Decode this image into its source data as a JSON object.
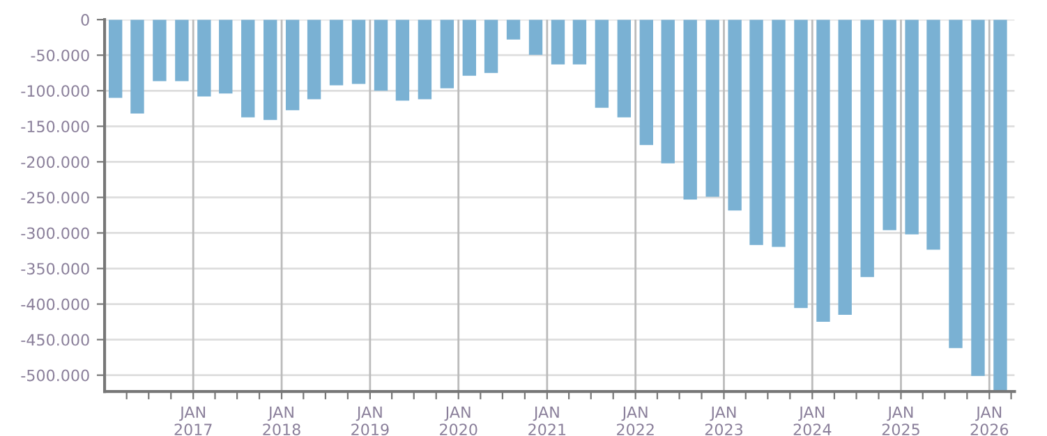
{
  "chart_data": {
    "type": "bar",
    "color": "#7ab1d3",
    "grid": true,
    "x": [
      "2016-02-15",
      "2016-05-15",
      "2016-08-15",
      "2016-11-15",
      "2017-02-15",
      "2017-05-15",
      "2017-08-15",
      "2017-11-15",
      "2018-02-15",
      "2018-05-15",
      "2018-08-15",
      "2018-11-15",
      "2019-02-15",
      "2019-05-15",
      "2019-08-15",
      "2019-11-15",
      "2020-02-15",
      "2020-05-15",
      "2020-08-15",
      "2020-11-15",
      "2021-02-15",
      "2021-05-15",
      "2021-08-15",
      "2021-11-15",
      "2022-02-15",
      "2022-05-15",
      "2022-08-15",
      "2022-11-15",
      "2023-02-15",
      "2023-05-15",
      "2023-08-15",
      "2023-11-15",
      "2024-02-15",
      "2024-05-15",
      "2024-08-15",
      "2024-11-15",
      "2025-02-15",
      "2025-05-15",
      "2025-08-15",
      "2025-11-15",
      "2026-02-15"
    ],
    "values": [
      -110000,
      -132000,
      -86500,
      -86500,
      -108000,
      -104000,
      -137500,
      -141000,
      -127500,
      -112000,
      -92500,
      -90500,
      -100000,
      -114000,
      -112000,
      -96500,
      -79000,
      -75000,
      -28000,
      -49500,
      -63000,
      -63000,
      -124000,
      -137500,
      -176500,
      -202000,
      -253000,
      -249000,
      -268500,
      -317000,
      -319500,
      -405500,
      -425000,
      -415000,
      -362000,
      -296000,
      -302000,
      -323500,
      -462000,
      -501000,
      -523000
    ],
    "xlim": [
      "2016-01-01",
      "2026-04-15"
    ],
    "ylim": [
      -523000,
      0
    ],
    "yticks": [
      0,
      {
        "value": -50000,
        "label": "-50.000"
      },
      {
        "value": -100000,
        "label": "-100.000"
      },
      {
        "value": -150000,
        "label": "-150.000"
      },
      {
        "value": -200000,
        "label": "-200.000"
      },
      {
        "value": -250000,
        "label": "-250.000"
      },
      {
        "value": -300000,
        "label": "-300.000"
      },
      {
        "value": -350000,
        "label": "-350.000"
      },
      {
        "value": -400000,
        "label": "-400.000"
      },
      {
        "value": -450000,
        "label": "-450.000"
      },
      {
        "value": -500000,
        "label": "-500.000"
      }
    ],
    "xticks": [
      {
        "value": "2016-04-01",
        "label": null
      },
      {
        "value": "2016-07-01",
        "label": null
      },
      {
        "value": "2016-10-01",
        "label": null
      },
      {
        "value": "2017-01-01",
        "label": "JAN\n2017"
      },
      {
        "value": "2017-04-01",
        "label": null
      },
      {
        "value": "2017-07-01",
        "label": null
      },
      {
        "value": "2017-10-01",
        "label": null
      },
      {
        "value": "2018-01-01",
        "label": "JAN\n2018"
      },
      {
        "value": "2018-04-01",
        "label": null
      },
      {
        "value": "2018-07-01",
        "label": null
      },
      {
        "value": "2018-10-01",
        "label": null
      },
      {
        "value": "2019-01-01",
        "label": "JAN\n2019"
      },
      {
        "value": "2019-04-01",
        "label": null
      },
      {
        "value": "2019-07-01",
        "label": null
      },
      {
        "value": "2019-10-01",
        "label": null
      },
      {
        "value": "2020-01-01",
        "label": "JAN\n2020"
      },
      {
        "value": "2020-04-01",
        "label": null
      },
      {
        "value": "2020-07-01",
        "label": null
      },
      {
        "value": "2020-10-01",
        "label": null
      },
      {
        "value": "2021-01-01",
        "label": "JAN\n2021"
      },
      {
        "value": "2021-04-01",
        "label": null
      },
      {
        "value": "2021-07-01",
        "label": null
      },
      {
        "value": "2021-10-01",
        "label": null
      },
      {
        "value": "2022-01-01",
        "label": "JAN\n2022"
      },
      {
        "value": "2022-04-01",
        "label": null
      },
      {
        "value": "2022-07-01",
        "label": null
      },
      {
        "value": "2022-10-01",
        "label": null
      },
      {
        "value": "2023-01-01",
        "label": "JAN\n2023"
      },
      {
        "value": "2023-04-01",
        "label": null
      },
      {
        "value": "2023-07-01",
        "label": null
      },
      {
        "value": "2023-10-01",
        "label": null
      },
      {
        "value": "2024-01-01",
        "label": "JAN\n2024"
      },
      {
        "value": "2024-04-01",
        "label": null
      },
      {
        "value": "2024-07-01",
        "label": null
      },
      {
        "value": "2024-10-01",
        "label": null
      },
      {
        "value": "2025-01-01",
        "label": "JAN\n2025"
      },
      {
        "value": "2025-04-01",
        "label": null
      },
      {
        "value": "2025-07-01",
        "label": null
      },
      {
        "value": "2025-10-01",
        "label": null
      },
      {
        "value": "2026-01-01",
        "label": "JAN\n2026"
      },
      {
        "value": "2026-04-01",
        "label": null
      }
    ]
  }
}
